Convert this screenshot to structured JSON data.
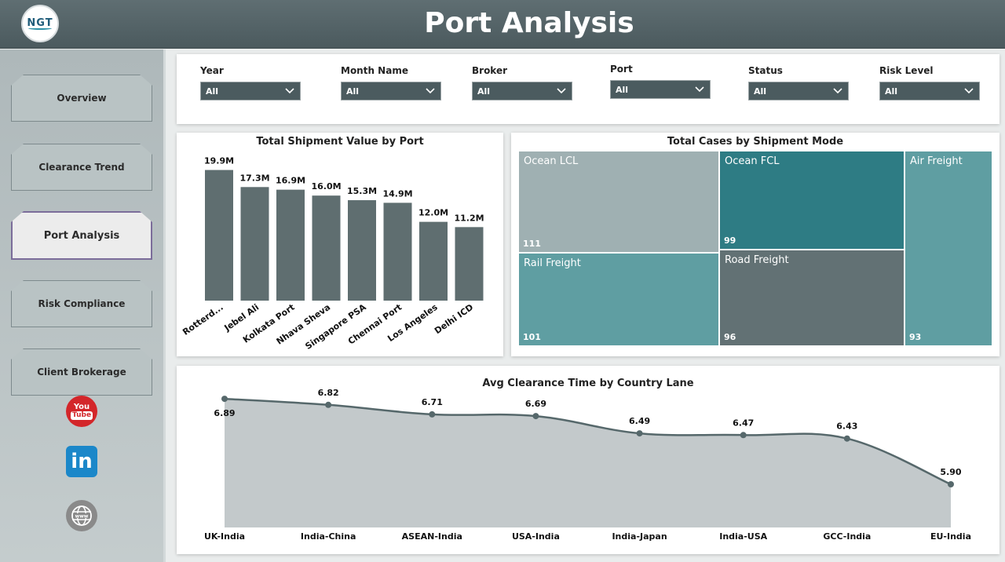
{
  "header": {
    "title": "Port Analysis",
    "logo_text": "NGT"
  },
  "sidebar": {
    "items": [
      {
        "label": "Overview",
        "active": false
      },
      {
        "label": "Clearance Trend",
        "active": false
      },
      {
        "label": "Port Analysis",
        "active": true
      },
      {
        "label": "Risk Compliance",
        "active": false
      },
      {
        "label": "Client Brokerage",
        "active": false
      }
    ],
    "social": {
      "youtube_line1": "You",
      "youtube_line2": "Tube",
      "linkedin": "in"
    }
  },
  "filters": [
    {
      "label": "Year",
      "value": "All"
    },
    {
      "label": "Month Name",
      "value": "All"
    },
    {
      "label": "Broker",
      "value": "All"
    },
    {
      "label": "Port",
      "value": "All"
    },
    {
      "label": "Status",
      "value": "All"
    },
    {
      "label": "Risk Level",
      "value": "All"
    }
  ],
  "colors": {
    "header": "#4f5e62",
    "bar": "#5f6e70",
    "accent_teal": "#2e7c84",
    "area_fill": "#c3c9cb",
    "line": "#56686b"
  },
  "chart_data": [
    {
      "type": "bar",
      "title": "Total Shipment Value by Port",
      "categories": [
        "Rotterd...",
        "Jebel Ali",
        "Kolkata Port",
        "Nhava Sheva",
        "Singapore PSA",
        "Chennai Port",
        "Los Angeles",
        "Delhi ICD"
      ],
      "values": [
        19.9,
        17.3,
        16.9,
        16.0,
        15.3,
        14.9,
        12.0,
        11.2
      ],
      "value_labels": [
        "19.9M",
        "17.3M",
        "16.9M",
        "16.0M",
        "15.3M",
        "14.9M",
        "12.0M",
        "11.2M"
      ],
      "unit": "M",
      "ylim": [
        0,
        22
      ]
    },
    {
      "type": "treemap",
      "title": "Total Cases by Shipment Mode",
      "categories": [
        "Ocean LCL",
        "Ocean FCL",
        "Air Freight",
        "Rail Freight",
        "Road Freight"
      ],
      "values": [
        111,
        99,
        93,
        101,
        96
      ]
    },
    {
      "type": "area",
      "title": "Avg Clearance Time by Country Lane",
      "categories": [
        "UK-India",
        "India-China",
        "ASEAN-India",
        "USA-India",
        "India-Japan",
        "India-USA",
        "GCC-India",
        "EU-India"
      ],
      "values": [
        6.89,
        6.82,
        6.71,
        6.69,
        6.49,
        6.47,
        6.43,
        5.9
      ],
      "value_labels": [
        "6.89",
        "6.82",
        "6.71",
        "6.69",
        "6.49",
        "6.47",
        "6.43",
        "5.90"
      ],
      "ylim": [
        5.4,
        7.0
      ]
    }
  ]
}
